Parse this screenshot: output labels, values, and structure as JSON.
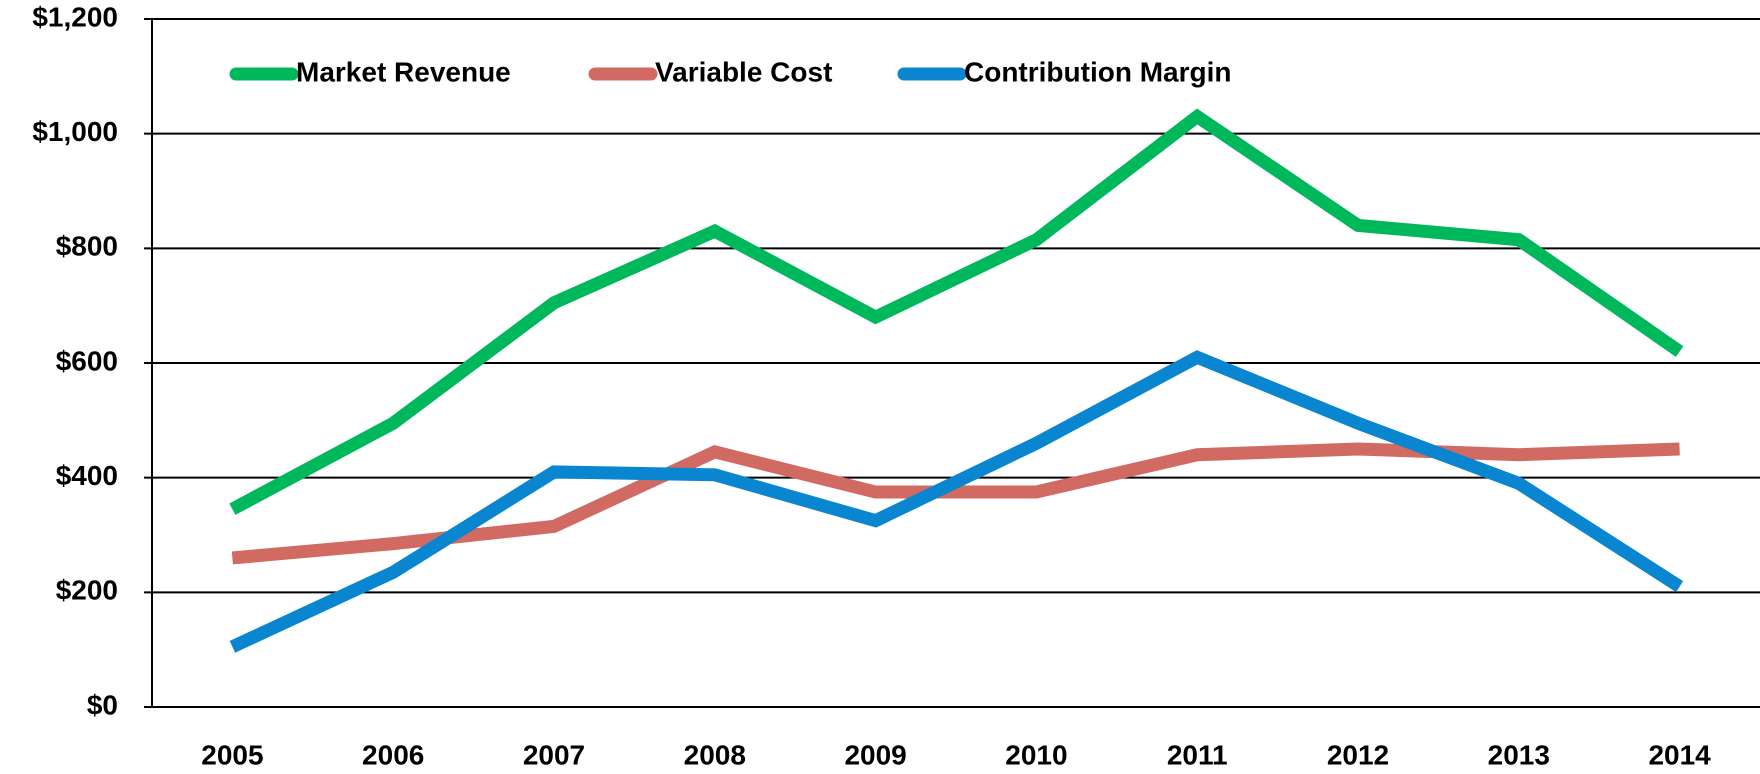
{
  "chart_data": {
    "type": "line",
    "categories": [
      "2005",
      "2006",
      "2007",
      "2008",
      "2009",
      "2010",
      "2011",
      "2012",
      "2013",
      "2014"
    ],
    "series": [
      {
        "name": "Market Revenue",
        "color": "#00b85c",
        "values": [
          345,
          495,
          705,
          830,
          680,
          815,
          1030,
          840,
          815,
          620
        ]
      },
      {
        "name": "Variable Cost",
        "color": "#d06a62",
        "values": [
          260,
          285,
          315,
          445,
          375,
          375,
          440,
          450,
          440,
          450
        ]
      },
      {
        "name": "Contribution Margin",
        "color": "#0a86d0",
        "values": [
          105,
          235,
          410,
          405,
          325,
          460,
          610,
          495,
          390,
          210
        ]
      }
    ],
    "ylim": [
      0,
      1200
    ],
    "yticks": [
      {
        "value": 0,
        "label": "$0"
      },
      {
        "value": 200,
        "label": "$200"
      },
      {
        "value": 400,
        "label": "$400"
      },
      {
        "value": 600,
        "label": "$600"
      },
      {
        "value": 800,
        "label": "$800"
      },
      {
        "value": 1000,
        "label": "$1,000"
      },
      {
        "value": 1200,
        "label": "$1,200"
      }
    ],
    "grid": true,
    "legend": "top-left"
  }
}
